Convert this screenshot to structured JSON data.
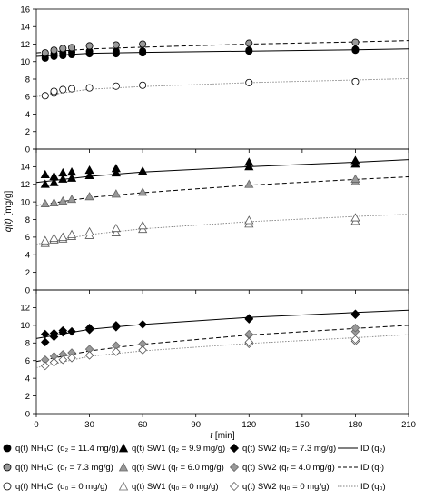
{
  "chart_data": {
    "type": "scatter",
    "x_axis": {
      "label": "t [min]",
      "min": 0,
      "max": 210,
      "ticks": [
        0,
        30,
        60,
        90,
        120,
        150,
        180,
        210
      ]
    },
    "y_axis_label": "q(t) [mg/g]",
    "panels": [
      {
        "ylim": [
          0,
          16
        ],
        "yticks": [
          0,
          2,
          4,
          6,
          8,
          10,
          12,
          14,
          16
        ],
        "series": [
          {
            "name": "q(t) NH4Cl (qz = 11.4 mg/g)",
            "marker": "circle",
            "fill": "#000000",
            "points": [
              [
                5,
                10.4
              ],
              [
                5,
                10.7
              ],
              [
                10,
                10.6
              ],
              [
                10,
                10.9
              ],
              [
                15,
                10.7
              ],
              [
                15,
                11.0
              ],
              [
                20,
                10.8
              ],
              [
                20,
                11.1
              ],
              [
                30,
                10.9
              ],
              [
                30,
                11.2
              ],
              [
                45,
                10.9
              ],
              [
                45,
                11.2
              ],
              [
                60,
                11.0
              ],
              [
                60,
                11.2
              ],
              [
                120,
                11.2
              ],
              [
                120,
                11.3
              ],
              [
                180,
                11.3
              ],
              [
                180,
                11.4
              ]
            ]
          },
          {
            "name": "q(t) NH4Cl (qr = 7.3 mg/g)",
            "marker": "circle",
            "fill": "#999999",
            "points": [
              [
                5,
                11.0
              ],
              [
                10,
                11.3
              ],
              [
                15,
                11.5
              ],
              [
                20,
                11.6
              ],
              [
                30,
                11.8
              ],
              [
                45,
                11.9
              ],
              [
                60,
                12.0
              ],
              [
                120,
                12.1
              ],
              [
                180,
                12.2
              ]
            ]
          },
          {
            "name": "q(t) NH4Cl (q0 = 0 mg/g)",
            "marker": "circle",
            "fill": "#ffffff",
            "points": [
              [
                5,
                6.1
              ],
              [
                10,
                6.4
              ],
              [
                10,
                6.6
              ],
              [
                15,
                6.8
              ],
              [
                20,
                6.9
              ],
              [
                30,
                7.0
              ],
              [
                45,
                7.2
              ],
              [
                60,
                7.3
              ],
              [
                120,
                7.6
              ],
              [
                180,
                7.7
              ]
            ]
          }
        ],
        "fits": [
          {
            "style": "solid",
            "color": "#000000",
            "points": [
              [
                0,
                10.6
              ],
              [
                30,
                10.95
              ],
              [
                60,
                11.05
              ],
              [
                120,
                11.2
              ],
              [
                180,
                11.35
              ],
              [
                210,
                11.45
              ]
            ]
          },
          {
            "style": "dashed",
            "color": "#000000",
            "points": [
              [
                0,
                11.0
              ],
              [
                30,
                11.45
              ],
              [
                60,
                11.65
              ],
              [
                120,
                12.0
              ],
              [
                180,
                12.25
              ],
              [
                210,
                12.4
              ]
            ]
          },
          {
            "style": "dotted",
            "color": "#808080",
            "points": [
              [
                0,
                6.0
              ],
              [
                30,
                6.85
              ],
              [
                60,
                7.15
              ],
              [
                120,
                7.6
              ],
              [
                180,
                7.9
              ],
              [
                210,
                8.05
              ]
            ]
          }
        ]
      },
      {
        "ylim": [
          0,
          16
        ],
        "yticks": [
          0,
          2,
          4,
          6,
          8,
          10,
          12,
          14,
          16
        ],
        "series": [
          {
            "name": "q(t) SW1 (qz = 9.9 mg/g)",
            "marker": "triangle",
            "fill": "#000000",
            "points": [
              [
                5,
                12.0
              ],
              [
                5,
                13.1
              ],
              [
                10,
                12.2
              ],
              [
                10,
                12.9
              ],
              [
                15,
                12.6
              ],
              [
                15,
                13.3
              ],
              [
                20,
                12.7
              ],
              [
                20,
                13.4
              ],
              [
                30,
                13.0
              ],
              [
                30,
                13.6
              ],
              [
                45,
                13.3
              ],
              [
                45,
                13.8
              ],
              [
                60,
                13.5
              ],
              [
                120,
                14.0
              ],
              [
                120,
                14.5
              ],
              [
                180,
                14.3
              ],
              [
                180,
                14.7
              ]
            ]
          },
          {
            "name": "q(t) SW1 (qr = 6.0 mg/g)",
            "marker": "triangle",
            "fill": "#999999",
            "points": [
              [
                5,
                9.8
              ],
              [
                10,
                9.9
              ],
              [
                15,
                10.1
              ],
              [
                20,
                10.3
              ],
              [
                30,
                10.6
              ],
              [
                45,
                10.9
              ],
              [
                60,
                11.1
              ],
              [
                120,
                12.0
              ],
              [
                180,
                12.3
              ],
              [
                180,
                12.6
              ]
            ]
          },
          {
            "name": "q(t) SW1 (q0 = 0 mg/g)",
            "marker": "triangle",
            "fill": "#ffffff",
            "points": [
              [
                5,
                5.3
              ],
              [
                5,
                5.6
              ],
              [
                10,
                5.7
              ],
              [
                10,
                5.9
              ],
              [
                15,
                5.8
              ],
              [
                15,
                6.0
              ],
              [
                20,
                6.1
              ],
              [
                20,
                6.3
              ],
              [
                30,
                6.2
              ],
              [
                30,
                6.6
              ],
              [
                45,
                6.5
              ],
              [
                45,
                7.0
              ],
              [
                60,
                6.9
              ],
              [
                60,
                7.3
              ],
              [
                120,
                7.5
              ],
              [
                120,
                7.9
              ],
              [
                180,
                7.8
              ],
              [
                180,
                8.2
              ]
            ]
          }
        ],
        "fits": [
          {
            "style": "solid",
            "color": "#000000",
            "points": [
              [
                0,
                12.2
              ],
              [
                30,
                12.9
              ],
              [
                60,
                13.4
              ],
              [
                120,
                14.0
              ],
              [
                180,
                14.5
              ],
              [
                210,
                14.8
              ]
            ]
          },
          {
            "style": "dashed",
            "color": "#000000",
            "points": [
              [
                0,
                9.6
              ],
              [
                30,
                10.5
              ],
              [
                60,
                11.05
              ],
              [
                120,
                11.9
              ],
              [
                180,
                12.55
              ],
              [
                210,
                12.85
              ]
            ]
          },
          {
            "style": "dotted",
            "color": "#808080",
            "points": [
              [
                0,
                5.2
              ],
              [
                30,
                6.3
              ],
              [
                60,
                6.95
              ],
              [
                120,
                7.75
              ],
              [
                180,
                8.35
              ],
              [
                210,
                8.6
              ]
            ]
          }
        ]
      },
      {
        "ylim": [
          0,
          14
        ],
        "yticks": [
          0,
          2,
          4,
          6,
          8,
          10,
          12,
          14
        ],
        "series": [
          {
            "name": "q(t) SW2 (qz = 7.3 mg/g)",
            "marker": "diamond",
            "fill": "#000000",
            "points": [
              [
                5,
                8.1
              ],
              [
                5,
                9.0
              ],
              [
                10,
                8.7
              ],
              [
                10,
                9.1
              ],
              [
                15,
                9.2
              ],
              [
                15,
                9.4
              ],
              [
                20,
                9.3
              ],
              [
                30,
                9.5
              ],
              [
                30,
                9.7
              ],
              [
                45,
                9.8
              ],
              [
                45,
                10.0
              ],
              [
                60,
                10.1
              ],
              [
                120,
                10.7
              ],
              [
                120,
                10.8
              ],
              [
                180,
                11.2
              ],
              [
                180,
                11.3
              ]
            ]
          },
          {
            "name": "q(t) SW2 (qr = 4.0 mg/g)",
            "marker": "diamond",
            "fill": "#999999",
            "points": [
              [
                5,
                6.1
              ],
              [
                10,
                6.5
              ],
              [
                15,
                6.7
              ],
              [
                20,
                6.9
              ],
              [
                30,
                7.3
              ],
              [
                45,
                7.7
              ],
              [
                60,
                7.9
              ],
              [
                120,
                8.9
              ],
              [
                120,
                9.0
              ],
              [
                180,
                9.3
              ],
              [
                180,
                9.7
              ]
            ]
          },
          {
            "name": "q(t) SW2 (q0 = 0 mg/g)",
            "marker": "diamond",
            "fill": "#ffffff",
            "points": [
              [
                5,
                5.4
              ],
              [
                10,
                5.8
              ],
              [
                15,
                6.1
              ],
              [
                20,
                6.3
              ],
              [
                30,
                6.6
              ],
              [
                45,
                7.0
              ],
              [
                60,
                7.2
              ],
              [
                120,
                7.9
              ],
              [
                120,
                8.1
              ],
              [
                180,
                8.2
              ],
              [
                180,
                8.4
              ]
            ]
          }
        ],
        "fits": [
          {
            "style": "solid",
            "color": "#000000",
            "points": [
              [
                0,
                8.5
              ],
              [
                30,
                9.55
              ],
              [
                60,
                10.1
              ],
              [
                120,
                10.9
              ],
              [
                180,
                11.45
              ],
              [
                210,
                11.7
              ]
            ]
          },
          {
            "style": "dashed",
            "color": "#000000",
            "points": [
              [
                0,
                5.9
              ],
              [
                30,
                7.1
              ],
              [
                60,
                7.85
              ],
              [
                120,
                8.9
              ],
              [
                180,
                9.65
              ],
              [
                210,
                10.0
              ]
            ]
          },
          {
            "style": "dotted",
            "color": "#808080",
            "points": [
              [
                0,
                5.2
              ],
              [
                30,
                6.5
              ],
              [
                60,
                7.1
              ],
              [
                120,
                7.95
              ],
              [
                180,
                8.6
              ],
              [
                210,
                8.95
              ]
            ]
          }
        ]
      }
    ]
  },
  "legend": {
    "rows": [
      [
        {
          "marker": "circle",
          "fill": "#000000",
          "text": "q(t) NH₄Cl (q₂ = 11.4 mg/g)"
        },
        {
          "marker": "triangle",
          "fill": "#000000",
          "text": "q(t) SW1 (q₂ = 9.9 mg/g)"
        },
        {
          "marker": "diamond",
          "fill": "#000000",
          "text": "q(t) SW2 (q₂ = 7.3 mg/g)"
        },
        {
          "marker": "line-solid",
          "fill": "#000000",
          "text": "ID (q₂)"
        }
      ],
      [
        {
          "marker": "circle",
          "fill": "#999999",
          "text": "q(t) NH₄Cl (qᵣ = 7.3 mg/g)"
        },
        {
          "marker": "triangle",
          "fill": "#999999",
          "text": "q(t) SW1 (qᵣ = 6.0 mg/g)"
        },
        {
          "marker": "diamond",
          "fill": "#999999",
          "text": "q(t) SW2 (qᵣ = 4.0 mg/g)"
        },
        {
          "marker": "line-dashed",
          "fill": "#000000",
          "text": "ID (qᵣ)"
        }
      ],
      [
        {
          "marker": "circle",
          "fill": "#ffffff",
          "text": "q(t) NH₄Cl (q₀ = 0 mg/g)"
        },
        {
          "marker": "triangle",
          "fill": "#ffffff",
          "text": "q(t) SW1 (q₀ = 0 mg/g)"
        },
        {
          "marker": "diamond",
          "fill": "#ffffff",
          "text": "q(t) SW2 (q₀ = 0 mg/g)"
        },
        {
          "marker": "line-dotted",
          "fill": "#808080",
          "text": "ID (q₀)"
        }
      ]
    ]
  }
}
